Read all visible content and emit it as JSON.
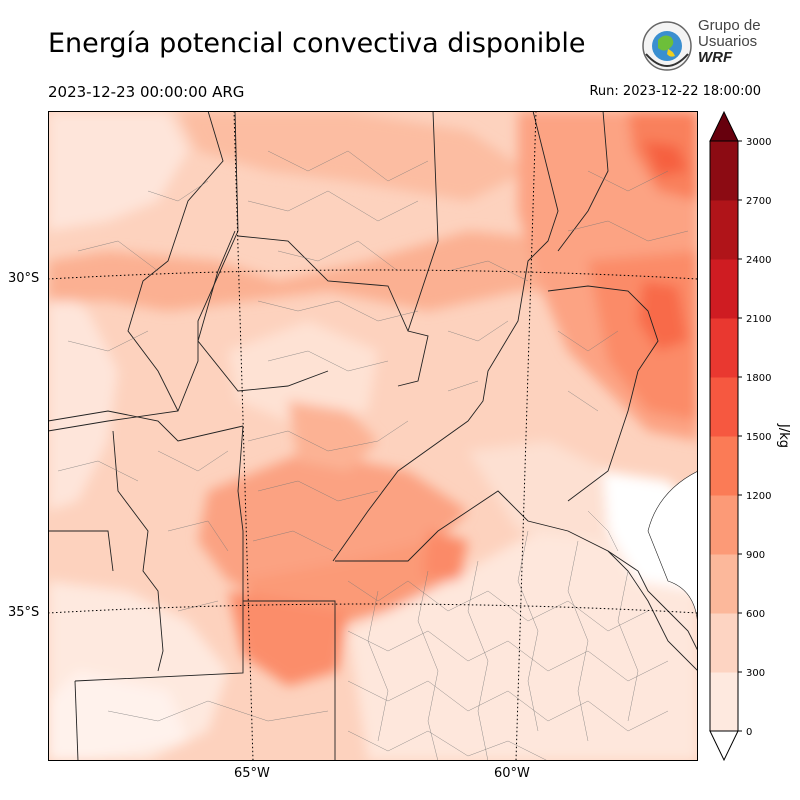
{
  "header": {
    "title": "Energía potencial convectiva disponible",
    "valid_time": "2023-12-23 00:00:00 ARG",
    "run_time": "Run: 2023-12-22 18:00:00"
  },
  "logo": {
    "line1": "Grupo de",
    "line2": "Usuarios",
    "line3": "WRF"
  },
  "map": {
    "lat_labels": [
      "30°S",
      "35°S"
    ],
    "lon_labels": [
      "65°W",
      "60°W"
    ]
  },
  "colorbar": {
    "label": "J/kg",
    "ticks": [
      "0",
      "300",
      "600",
      "900",
      "1200",
      "1500",
      "1800",
      "2100",
      "2400",
      "2700",
      "3000"
    ],
    "colors": [
      "#fee9df",
      "#fdd4c2",
      "#fcb89b",
      "#fc9a77",
      "#fb7b56",
      "#f65840",
      "#e93830",
      "#cf1c22",
      "#b01419",
      "#8c0b13"
    ],
    "over_color": "#67000d"
  }
}
